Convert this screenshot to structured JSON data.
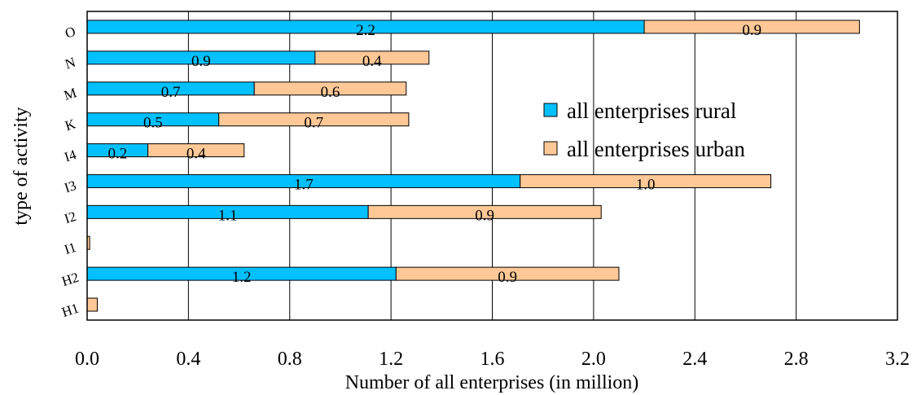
{
  "chart_data": {
    "type": "bar",
    "orientation": "horizontal",
    "stacked": true,
    "categories": [
      "O",
      "N",
      "M",
      "K",
      "I4",
      "I3",
      "I2",
      "I1",
      "H2",
      "H1"
    ],
    "series": [
      {
        "name": "all enterprises rural",
        "color": "#00c0ff",
        "values": [
          2.2,
          0.9,
          0.66,
          0.52,
          0.24,
          1.71,
          1.11,
          0.0,
          1.22,
          0.0
        ],
        "labels": [
          "2.2",
          "0.9",
          "0.7",
          "0.5",
          "0.2",
          "1.7",
          "1.1",
          "",
          "1.2",
          ""
        ]
      },
      {
        "name": "all enterprises urban",
        "color": "#ffc896",
        "values": [
          0.85,
          0.45,
          0.6,
          0.75,
          0.38,
          0.99,
          0.92,
          0.01,
          0.88,
          0.04
        ],
        "labels": [
          "0.9",
          "0.4",
          "0.6",
          "0.7",
          "0.4",
          "1.0",
          "0.9",
          "",
          "0.9",
          ""
        ]
      }
    ],
    "xlabel": "Number of all enterprises (in million)",
    "ylabel": "type of activity",
    "xlim": [
      0,
      3.2
    ],
    "xticks": [
      "0.0",
      "0.4",
      "0.8",
      "1.2",
      "1.6",
      "2.0",
      "2.4",
      "2.8",
      "3.2"
    ],
    "grid": "vertical",
    "legend_position": "right"
  }
}
